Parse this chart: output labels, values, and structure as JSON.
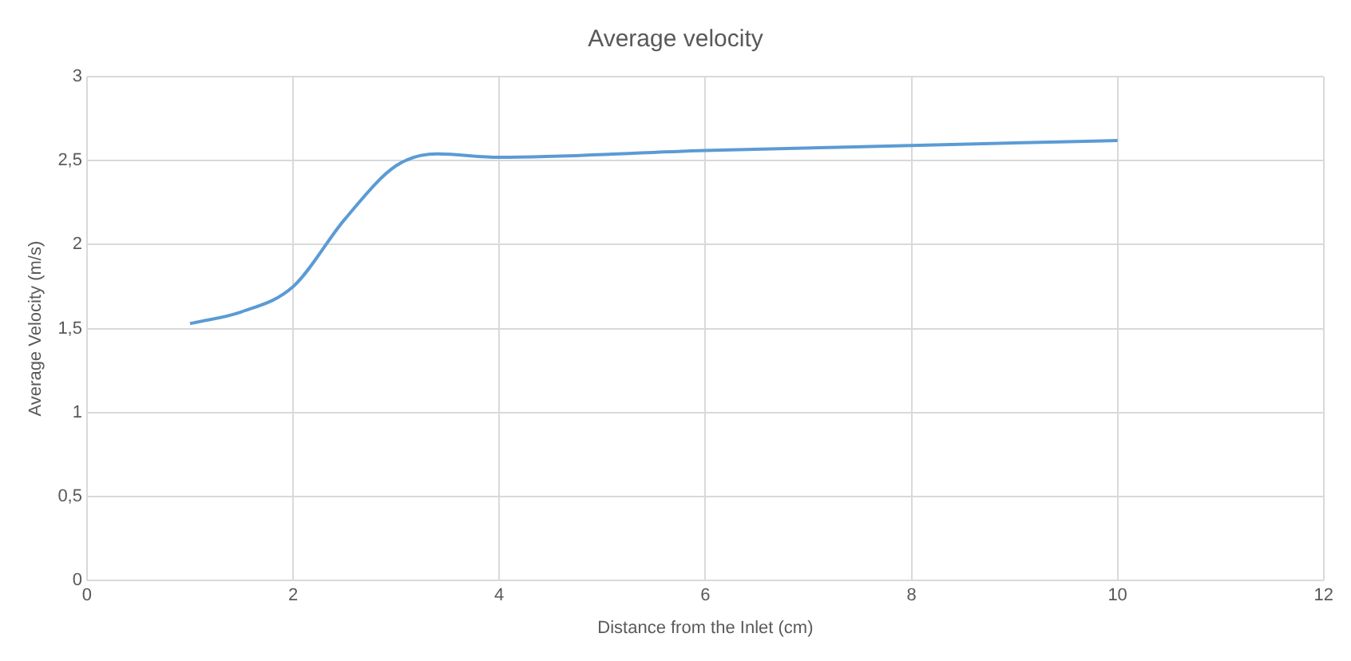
{
  "chart_data": {
    "type": "line",
    "title": "Average velocity",
    "xlabel": "Distance from the Inlet (cm)",
    "ylabel": "Average Velocity (m/s)",
    "x": [
      1,
      1.5,
      2,
      2.5,
      3,
      3.4,
      4,
      6,
      8,
      10
    ],
    "series": [
      {
        "color": "#5b9bd5",
        "values": [
          1.53,
          1.6,
          1.75,
          2.15,
          2.47,
          2.54,
          2.52,
          2.56,
          2.59,
          2.62
        ]
      }
    ],
    "xlim": [
      0,
      12
    ],
    "xticks": [
      0,
      2,
      4,
      6,
      8,
      10,
      12
    ],
    "ylim": [
      0,
      3
    ],
    "yticks": [
      0,
      {
        "value": 0.5,
        "label": "0,5"
      },
      1,
      {
        "value": 1.5,
        "label": "1,5"
      },
      2,
      {
        "value": 2.5,
        "label": "2,5"
      },
      3
    ],
    "grid": true,
    "legend": false,
    "marker": "none",
    "line_style": "solid"
  }
}
